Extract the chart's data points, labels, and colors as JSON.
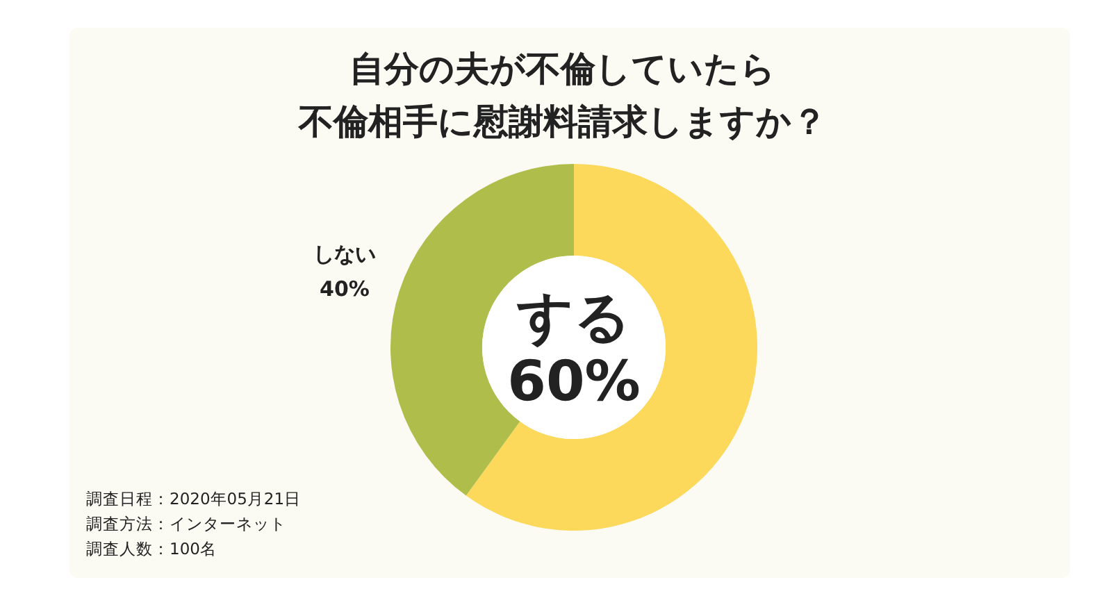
{
  "chart_data": {
    "type": "donut",
    "title": "自分の夫が不倫していたら",
    "subtitle": "不倫相手に慰謝料請求しますか？",
    "categories": [
      "する",
      "しない"
    ],
    "values": [
      60,
      40
    ],
    "value_labels": [
      "60%",
      "40%"
    ],
    "colors": [
      "#fcd95b",
      "#afbd4b"
    ],
    "legend": false,
    "annotations": [
      "調査日程：2020年05月21日",
      "調査方法：インターネット",
      "調査人数：100名"
    ]
  }
}
